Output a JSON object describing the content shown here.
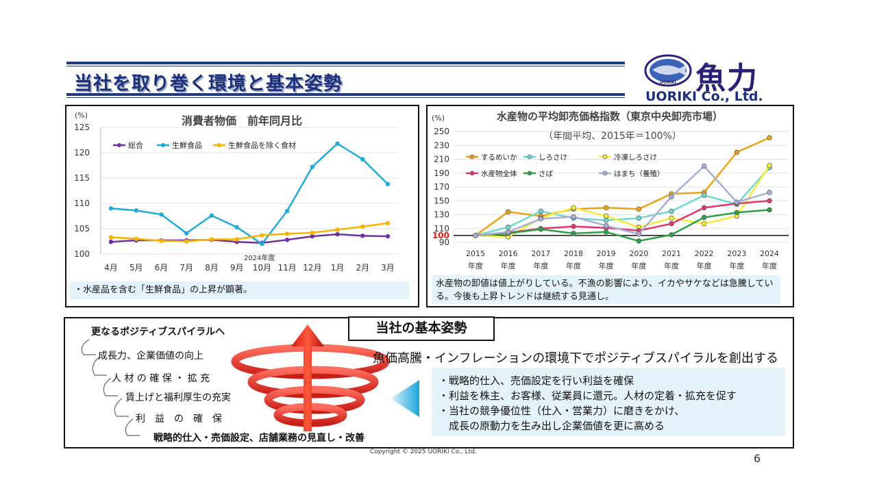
{
  "header": {
    "title": "当社を取り巻く環境と基本姿勢",
    "logo_kanji": "魚力",
    "logo_name": "UORIKI Co., Ltd.",
    "logo_emblem_text": "UORIKI",
    "colors": {
      "title": "#1d2f78",
      "rule": "#1f3b7a"
    }
  },
  "left_panel": {
    "note": "・水産品を含む「生鮮食品」の上昇が顕著。",
    "year_label": "2024年度"
  },
  "right_panel": {
    "note": "水産物の卸値は値上がりしている。不漁の影響により、イカやサケなどは急騰している。今後も上昇トレンドは継続する見通し。"
  },
  "chart_data": [
    {
      "type": "line",
      "title": "消費者物価　前年同月比",
      "ylabel": "(%)",
      "ylim": [
        100,
        125
      ],
      "yticks": [
        100,
        105,
        110,
        115,
        120,
        125
      ],
      "categories": [
        "4月",
        "5月",
        "6月",
        "7月",
        "8月",
        "9月",
        "10月",
        "11月",
        "12月",
        "1月",
        "2月",
        "3月"
      ],
      "legend_position": "top-left",
      "grid": true,
      "series": [
        {
          "name": "総合",
          "color": "#7030a0",
          "values": [
            102.4,
            102.7,
            102.7,
            102.7,
            102.8,
            102.4,
            102.2,
            102.8,
            103.5,
            103.9,
            103.6,
            103.5
          ]
        },
        {
          "name": "生鮮食品",
          "color": "#21a9d8",
          "values": [
            109.0,
            108.6,
            107.8,
            104.1,
            107.6,
            105.3,
            102.0,
            108.5,
            117.2,
            121.8,
            118.7,
            113.8
          ]
        },
        {
          "name": "生鮮食品を除く食材",
          "color": "#f5b400",
          "values": [
            103.3,
            103.0,
            102.6,
            102.5,
            102.9,
            102.9,
            103.7,
            104.0,
            104.2,
            104.8,
            105.4,
            106.1
          ]
        }
      ]
    },
    {
      "type": "line",
      "title": "水産物の平均卸売価格指数（東京中央卸売市場）",
      "subtitle": "（年間平均、2015年＝100%）",
      "ylabel": "(%)",
      "ylim": [
        90,
        250
      ],
      "yticks": [
        90,
        110,
        130,
        150,
        170,
        190,
        210,
        230,
        250
      ],
      "reference_line": {
        "value": 100,
        "label": "100"
      },
      "categories": [
        "2015",
        "2016",
        "2017",
        "2018",
        "2019",
        "2020",
        "2021",
        "2022",
        "2023",
        "2024"
      ],
      "category_suffix": "年度",
      "legend_position": "top-left",
      "grid": true,
      "series": [
        {
          "name": "するめいか",
          "color": "#e8a317",
          "values": [
            100,
            134,
            128,
            138,
            140,
            138,
            160,
            162,
            220,
            241
          ]
        },
        {
          "name": "しろさけ",
          "color": "#6fd7d2",
          "values": [
            100,
            112,
            135,
            125,
            122,
            125,
            135,
            158,
            145,
            198
          ]
        },
        {
          "name": "冷凍しろさけ",
          "color": "#f4ee3a",
          "values": [
            100,
            98,
            125,
            140,
            128,
            112,
            125,
            117,
            128,
            201
          ]
        },
        {
          "name": "水産物全体",
          "color": "#e0356e",
          "values": [
            100,
            104,
            110,
            113,
            111,
            107,
            117,
            140,
            146,
            150
          ]
        },
        {
          "name": "さば",
          "color": "#2e9e44",
          "values": [
            100,
            103,
            109,
            103,
            105,
            92,
            101,
            126,
            133,
            137
          ]
        },
        {
          "name": "はまち（養殖）",
          "color": "#a8aed6",
          "values": [
            100,
            105,
            124,
            127,
            114,
            102,
            156,
            200,
            148,
            162
          ]
        }
      ]
    }
  ],
  "bottom": {
    "section_title": "当社の基本姿勢",
    "steps": [
      "更なるポジティブスパイラルへ",
      "成長力、企業価値の向上",
      "人 材 の 確 保 ・ 拡 充",
      "賃上げと福利厚生の充実",
      "利　益　の　確　保",
      "戦略的仕入・売価設定、店舗業務の見直し・改善"
    ],
    "statement": "魚価高騰・インフレーションの環境下でポジティブスパイラルを創出する",
    "policies": [
      "・戦略的仕入、売価設定を行い利益を確保",
      "・利益を株主、お客様、従業員に還元。人材の定着・拡充を促す",
      "・当社の競争優位性（仕入・営業力）に磨きをかけ、",
      "　成長の原動力を生み出し企業価値を更に高める"
    ],
    "colors": {
      "spiral": "#e8322c",
      "arrow": "#2ab6e0",
      "policy_bg": "#e4f3fa"
    }
  },
  "footer": {
    "copyright": "Copyright © 2025 UORIKI Co., Ltd.",
    "page_number": "6"
  }
}
